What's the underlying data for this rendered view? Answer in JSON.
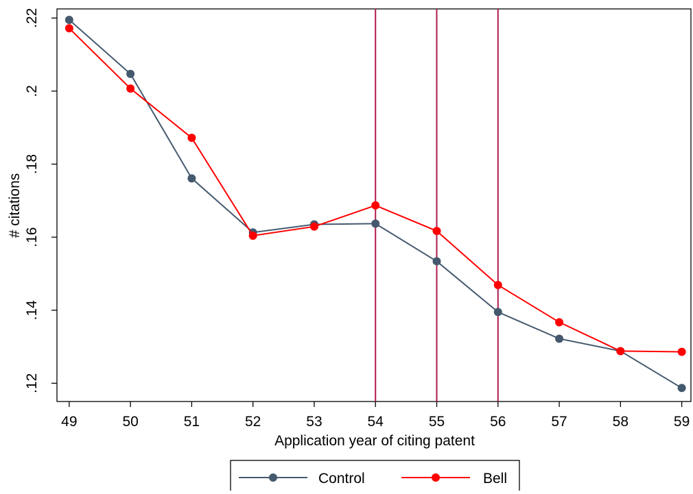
{
  "chart_data": {
    "type": "line",
    "x": [
      49,
      50,
      51,
      52,
      53,
      54,
      55,
      56,
      57,
      58,
      59
    ],
    "x_tick_labels": [
      "49",
      "50",
      "51",
      "52",
      "53",
      "54",
      "55",
      "56",
      "57",
      "58",
      "59"
    ],
    "y_tick_labels": [
      ".12",
      ".14",
      ".16",
      ".18",
      ".2",
      ".22"
    ],
    "y_ticks": [
      0.12,
      0.14,
      0.16,
      0.18,
      0.2,
      0.22
    ],
    "xlim": [
      48.8,
      59.15
    ],
    "ylim": [
      0.115,
      0.2225
    ],
    "xlabel": "Application year of citing patent",
    "ylabel": "# citations",
    "grid": false,
    "legend_position": "bottom",
    "reference_lines_x": [
      54,
      55,
      56
    ],
    "reference_line_color": "#b0184e",
    "series": [
      {
        "name": "Control",
        "color": "#44596e",
        "values": [
          0.2195,
          0.2047,
          0.1761,
          0.1613,
          0.1635,
          0.1637,
          0.1534,
          0.1395,
          0.1322,
          0.1288,
          0.1187
        ]
      },
      {
        "name": "Bell",
        "color": "#ff0000",
        "values": [
          0.2172,
          0.2007,
          0.1872,
          0.1604,
          0.1629,
          0.1687,
          0.1617,
          0.1469,
          0.1367,
          0.1288,
          0.1286
        ]
      }
    ]
  }
}
